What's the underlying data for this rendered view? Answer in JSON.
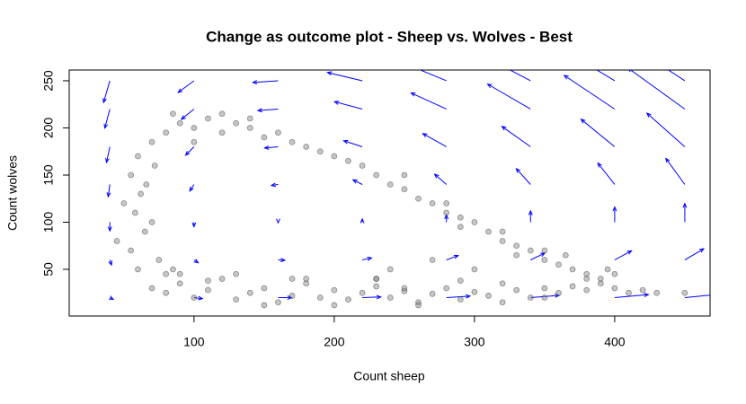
{
  "chart_data": {
    "type": "scatter",
    "title": "Change as outcome plot - Sheep vs. Wolves - Best",
    "x_label": "Count sheep",
    "y_label": "Count wolves",
    "xlim": [
      11,
      468
    ],
    "ylim": [
      0.5,
      261.4
    ],
    "xticks": [
      100,
      200,
      300,
      400
    ],
    "yticks": [
      50,
      100,
      150,
      200,
      250
    ],
    "point_color": "#808080",
    "arrow_color": "#0000ff",
    "x": [
      70,
      80,
      90,
      100,
      110,
      120,
      130,
      140,
      150,
      160,
      170,
      180,
      190,
      200,
      210,
      220,
      230,
      240,
      250,
      260,
      270,
      280,
      290,
      300,
      310,
      320,
      330,
      340,
      350,
      360,
      370,
      380,
      390,
      400,
      410,
      420,
      430,
      450,
      90,
      110,
      130,
      150,
      170,
      200,
      230,
      260,
      290,
      320,
      350,
      380,
      60,
      55,
      65,
      58,
      62,
      55,
      60,
      70,
      50,
      75,
      80,
      70,
      45,
      85,
      66,
      72,
      80,
      90,
      100,
      110,
      120,
      130,
      140,
      150,
      160,
      170,
      180,
      190,
      100,
      120,
      85,
      140,
      200,
      210,
      220,
      230,
      240,
      250,
      260,
      270,
      280,
      290,
      300,
      310,
      320,
      330,
      340,
      350,
      360,
      370,
      380,
      390,
      400,
      250,
      280,
      320,
      350,
      290,
      330,
      365,
      395,
      230,
      240,
      270,
      300,
      180,
      250
    ],
    "y": [
      30,
      25,
      35,
      20,
      28,
      40,
      18,
      25,
      30,
      15,
      22,
      35,
      20,
      28,
      18,
      25,
      32,
      20,
      27,
      15,
      24,
      30,
      18,
      26,
      22,
      35,
      28,
      20,
      30,
      25,
      32,
      28,
      35,
      30,
      25,
      28,
      25,
      25,
      45,
      38,
      45,
      12,
      40,
      12,
      40,
      12,
      38,
      15,
      20,
      40,
      50,
      70,
      90,
      110,
      130,
      150,
      170,
      185,
      120,
      60,
      45,
      100,
      80,
      50,
      140,
      160,
      195,
      205,
      200,
      210,
      195,
      205,
      200,
      190,
      195,
      185,
      180,
      175,
      185,
      215,
      215,
      210,
      170,
      165,
      160,
      150,
      140,
      135,
      125,
      120,
      110,
      105,
      100,
      90,
      80,
      75,
      70,
      60,
      55,
      50,
      45,
      40,
      45,
      150,
      120,
      90,
      70,
      95,
      65,
      65,
      50,
      40,
      50,
      60,
      50,
      40,
      30
    ],
    "vectors": {
      "x": [
        40,
        40,
        40,
        40,
        40,
        40,
        40,
        100,
        100,
        100,
        100,
        100,
        100,
        100,
        160,
        160,
        160,
        160,
        160,
        160,
        160,
        220,
        220,
        220,
        220,
        220,
        220,
        220,
        280,
        280,
        280,
        280,
        280,
        280,
        280,
        340,
        340,
        340,
        340,
        340,
        340,
        340,
        400,
        400,
        400,
        400,
        400,
        400,
        400,
        450,
        450,
        450,
        450,
        450,
        450,
        450
      ],
      "y": [
        20,
        60,
        100,
        140,
        180,
        220,
        250,
        20,
        60,
        100,
        140,
        180,
        220,
        250,
        20,
        60,
        100,
        140,
        180,
        220,
        250,
        20,
        60,
        100,
        140,
        180,
        220,
        250,
        20,
        60,
        100,
        140,
        180,
        220,
        250,
        20,
        60,
        100,
        140,
        180,
        220,
        250,
        20,
        60,
        100,
        140,
        180,
        220,
        250,
        20,
        60,
        100,
        140,
        180,
        220,
        250
      ],
      "dx": [
        2.4,
        1.2,
        0,
        -1.2,
        -2.4,
        -3.6,
        -4.5,
        6,
        3,
        0,
        -3,
        -6,
        -9,
        -11.3,
        9.6,
        4.8,
        0,
        -4.8,
        -9.6,
        -14.4,
        -18,
        13.2,
        6.6,
        0,
        -6.6,
        -13.2,
        -19.8,
        -24.8,
        16.8,
        8.4,
        0,
        -8.4,
        -16.8,
        -25.2,
        -31.5,
        20.4,
        10.2,
        0,
        -10.2,
        -20.4,
        -30.6,
        -38.3,
        24,
        12,
        0,
        -12,
        -24,
        -36,
        -45,
        27,
        13.5,
        0,
        -13.5,
        -27,
        -40.5,
        -50.5
      ],
      "dy": [
        -1.8,
        -5.5,
        -9.2,
        -12.9,
        -16.5,
        -20.2,
        -23,
        -1,
        -3,
        -4.9,
        -6.9,
        -8.9,
        -10.9,
        -12.4,
        -0.1,
        -0.4,
        -0.7,
        -1,
        -1.3,
        -1.6,
        -1.8,
        0.7,
        2.1,
        3.5,
        4.9,
        6.4,
        7.8,
        8.8,
        1.6,
        4.7,
        7.8,
        10.9,
        14,
        17.1,
        19.4,
        2.4,
        7.2,
        12,
        16.8,
        21.6,
        26.4,
        30,
        3.2,
        9.7,
        16.2,
        22.7,
        29.2,
        35.7,
        40.6,
        4,
        11.9,
        19.8,
        27.7,
        35.6,
        43.5,
        49.4
      ]
    }
  }
}
